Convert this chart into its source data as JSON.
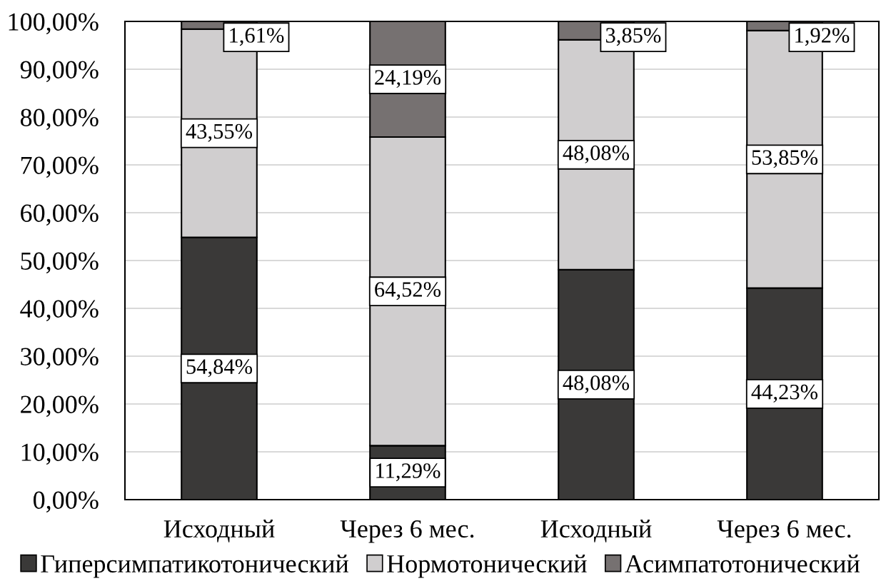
{
  "chart_data": {
    "type": "bar",
    "stacked": true,
    "categories": [
      "Исходный",
      "Через 6 мес.",
      "Исходный",
      "Через 6 мес."
    ],
    "series": [
      {
        "name": "Гиперсимпатикотонический",
        "color": "#3a3938",
        "values": [
          54.84,
          11.29,
          48.08,
          44.23
        ],
        "value_labels": [
          "54,84%",
          "11,29%",
          "48,08%",
          "44,23%"
        ]
      },
      {
        "name": "Нормотонический",
        "color": "#d0cecf",
        "values": [
          43.55,
          64.52,
          48.08,
          53.85
        ],
        "value_labels": [
          "43,55%",
          "64,52%",
          "48,08%",
          "53,85%"
        ]
      },
      {
        "name": "Асимпатотонический",
        "color": "#767171",
        "values": [
          1.61,
          24.19,
          3.85,
          1.92
        ],
        "value_labels": [
          "1,61%",
          "24,19%",
          "3,85%",
          "1,92%"
        ]
      }
    ],
    "ylim": [
      0,
      100
    ],
    "yticks": [
      {
        "value": 0,
        "label": "0,00%"
      },
      {
        "value": 10,
        "label": "10,00%"
      },
      {
        "value": 20,
        "label": "20,00%"
      },
      {
        "value": 30,
        "label": "30,00%"
      },
      {
        "value": 40,
        "label": "40,00%"
      },
      {
        "value": 50,
        "label": "50,00%"
      },
      {
        "value": 60,
        "label": "60,00%"
      },
      {
        "value": 70,
        "label": "70,00%"
      },
      {
        "value": 80,
        "label": "80,00%"
      },
      {
        "value": 90,
        "label": "90,00%"
      },
      {
        "value": 100,
        "label": "100,00%"
      }
    ],
    "grid": "y",
    "legend": "bottom"
  }
}
